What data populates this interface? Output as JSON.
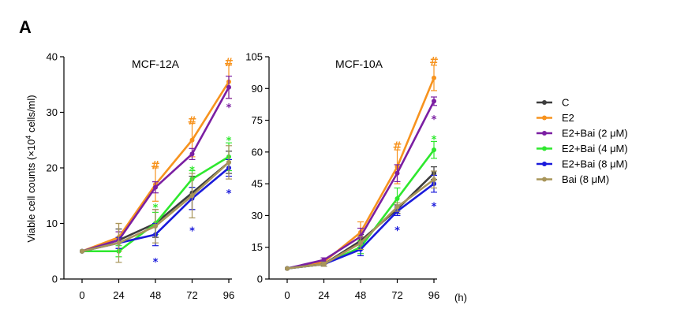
{
  "panel_label": "A",
  "ylabel": "Viable cell counts (×10",
  "ylabel_sup": "4",
  "ylabel_tail": " cells/ml)",
  "x_unit": "(h)",
  "series_styles": [
    {
      "name": "C",
      "color": "#3d3d3d"
    },
    {
      "name": "E2",
      "color": "#f7931e"
    },
    {
      "name": "E2+Bai (2 μM)",
      "color": "#7b1fa2"
    },
    {
      "name": "E2+Bai (4 μM)",
      "color": "#2ee82e"
    },
    {
      "name": "E2+Bai (8 μM)",
      "color": "#1a1adb"
    },
    {
      "name": "Bai (8 μM)",
      "color": "#a8955a"
    }
  ],
  "chart_data": [
    {
      "type": "line",
      "title": "MCF-12A",
      "x": [
        0,
        24,
        48,
        72,
        96
      ],
      "xticks": [
        "0",
        "24",
        "48",
        "72",
        "96"
      ],
      "ylim": [
        0,
        40
      ],
      "yticks": [
        0,
        10,
        20,
        30,
        40
      ],
      "series": [
        {
          "name": "C",
          "values": [
            5,
            7,
            10,
            15.5,
            21
          ],
          "errors": [
            0,
            2,
            2.5,
            3,
            2
          ]
        },
        {
          "name": "E2",
          "values": [
            5,
            7.5,
            17,
            25,
            35.5
          ],
          "errors": [
            0,
            2.5,
            3,
            3,
            3
          ]
        },
        {
          "name": "E2+Bai (2 μM)",
          "values": [
            5,
            7,
            16.5,
            22.5,
            34.5
          ],
          "errors": [
            0,
            1.5,
            1,
            1,
            2
          ]
        },
        {
          "name": "E2+Bai (4 μM)",
          "values": [
            5,
            5,
            10,
            18,
            22
          ],
          "errors": [
            0,
            1,
            2,
            1.5,
            2.5
          ]
        },
        {
          "name": "E2+Bai (8 μM)",
          "values": [
            5,
            6.5,
            8,
            14.5,
            20
          ],
          "errors": [
            0,
            1,
            2,
            2,
            1.5
          ]
        },
        {
          "name": "Bai (8 μM)",
          "values": [
            5,
            6.5,
            9.5,
            15,
            21
          ],
          "errors": [
            0,
            3.5,
            3,
            4,
            3
          ]
        }
      ],
      "annotations": [
        {
          "text": "#",
          "x": 48,
          "y": 20.5,
          "color": "#f7931e"
        },
        {
          "text": "#",
          "x": 72,
          "y": 28.5,
          "color": "#f7931e"
        },
        {
          "text": "#",
          "x": 96,
          "y": 39,
          "color": "#f7931e"
        },
        {
          "text": "*",
          "x": 96,
          "y": 31.5,
          "color": "#7b1fa2"
        },
        {
          "text": "*",
          "x": 48,
          "y": 13.5,
          "color": "#2ee82e"
        },
        {
          "text": "*",
          "x": 72,
          "y": 20.2,
          "color": "#2ee82e"
        },
        {
          "text": "*",
          "x": 96,
          "y": 25.5,
          "color": "#2ee82e"
        },
        {
          "text": "*",
          "x": 48,
          "y": 3.7,
          "color": "#1a1adb"
        },
        {
          "text": "*",
          "x": 72,
          "y": 9.3,
          "color": "#1a1adb"
        },
        {
          "text": "*",
          "x": 96,
          "y": 16,
          "color": "#1a1adb"
        }
      ]
    },
    {
      "type": "line",
      "title": "MCF-10A",
      "x": [
        0,
        24,
        48,
        72,
        96
      ],
      "xticks": [
        "0",
        "24",
        "48",
        "72",
        "96"
      ],
      "ylim": [
        0,
        105
      ],
      "yticks": [
        0,
        15,
        30,
        45,
        60,
        75,
        90,
        105
      ],
      "series": [
        {
          "name": "C",
          "values": [
            5,
            7,
            18,
            33,
            50
          ],
          "errors": [
            0,
            1,
            3,
            2,
            3
          ]
        },
        {
          "name": "E2",
          "values": [
            5,
            8,
            22,
            53,
            95
          ],
          "errors": [
            0,
            1,
            5,
            8,
            6
          ]
        },
        {
          "name": "E2+Bai (2 μM)",
          "values": [
            5,
            9,
            20,
            50,
            84
          ],
          "errors": [
            0,
            1,
            4,
            4,
            2
          ]
        },
        {
          "name": "E2+Bai (4 μM)",
          "values": [
            5,
            7,
            15,
            38,
            61
          ],
          "errors": [
            0,
            1,
            3,
            5,
            4
          ]
        },
        {
          "name": "E2+Bai (8 μM)",
          "values": [
            5,
            7,
            14,
            32,
            45
          ],
          "errors": [
            0,
            1,
            3,
            2,
            4
          ]
        },
        {
          "name": "Bai (8 μM)",
          "values": [
            5,
            7,
            17,
            34,
            47
          ],
          "errors": [
            0,
            1,
            3,
            2,
            4
          ]
        }
      ],
      "annotations": [
        {
          "text": "#",
          "x": 72,
          "y": 63,
          "color": "#f7931e"
        },
        {
          "text": "#",
          "x": 96,
          "y": 103,
          "color": "#f7931e"
        },
        {
          "text": "*",
          "x": 96,
          "y": 77,
          "color": "#7b1fa2"
        },
        {
          "text": "*",
          "x": 96,
          "y": 67.5,
          "color": "#2ee82e"
        },
        {
          "text": "*",
          "x": 72,
          "y": 24.5,
          "color": "#1a1adb"
        },
        {
          "text": "*",
          "x": 96,
          "y": 36,
          "color": "#1a1adb"
        }
      ]
    }
  ]
}
